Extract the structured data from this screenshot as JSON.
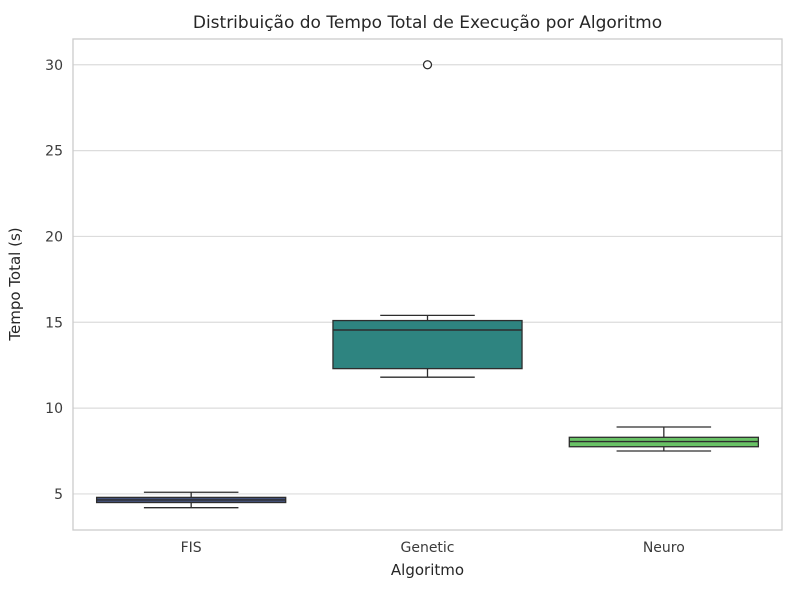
{
  "figure": {
    "background_color": "#ffffff",
    "grid_color": "#dcdcdc",
    "spine_color": "#cbcbcb",
    "text_color": "#262626",
    "tick_color": "#3b3b3b",
    "box_edge_color": "#2d2d2d",
    "outlier_fill": "#ffffff"
  },
  "chart_data": {
    "type": "boxplot",
    "title": "Distribuição do Tempo Total de Execução por Algoritmo",
    "xlabel": "Algoritmo",
    "ylabel": "Tempo Total (s)",
    "categories": [
      "FIS",
      "Genetic",
      "Neuro"
    ],
    "yticks": [
      5,
      10,
      15,
      20,
      25,
      30
    ],
    "ylim": [
      2.9,
      31.5
    ],
    "grid": true,
    "legend": "none",
    "boxes": [
      {
        "category": "FIS",
        "whisker_low": 4.2,
        "q1": 4.5,
        "median": 4.65,
        "q3": 4.8,
        "whisker_high": 5.1,
        "outliers": [],
        "color": "#46547f"
      },
      {
        "category": "Genetic",
        "whisker_low": 11.8,
        "q1": 12.3,
        "median": 14.55,
        "q3": 15.1,
        "whisker_high": 15.4,
        "outliers": [
          30
        ],
        "color": "#2e8480"
      },
      {
        "category": "Neuro",
        "whisker_low": 7.5,
        "q1": 7.75,
        "median": 8.05,
        "q3": 8.3,
        "whisker_high": 8.9,
        "outliers": [],
        "color": "#69c266"
      }
    ]
  }
}
